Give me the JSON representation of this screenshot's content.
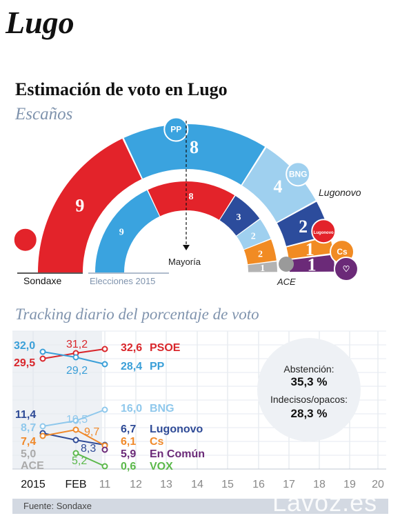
{
  "page": {
    "city_title": "Lugo",
    "title": "Estimación de voto en Lugo",
    "seats_subtitle": "Escaños",
    "tracking_subtitle": "Tracking diario del porcentaje de voto",
    "source": "Fuente: Sondaxe",
    "brand": "Lavoz.es"
  },
  "chart_data": [
    {
      "type": "pie",
      "title": "Escaños",
      "layout": "half-donut (hemicycle)",
      "outer_ring_label": "Sondaxe",
      "inner_ring_label": "Elecciones 2015",
      "majority_label": "Mayoría",
      "total_seats": 25,
      "outer_ring": [
        {
          "party": "PSOE",
          "seats": 9,
          "color": "#e3232a",
          "logo_text": ""
        },
        {
          "party": "PP",
          "seats": 8,
          "color": "#3aa3df",
          "logo_text": "PP"
        },
        {
          "party": "BNG",
          "seats": 4,
          "color": "#9fd0ef",
          "logo_text": "BNG"
        },
        {
          "party": "Lugonovo",
          "seats": 2,
          "color": "#2c4c9c",
          "logo_text": "Lugonovo"
        },
        {
          "party": "Cs",
          "seats": 1,
          "color": "#f18b23",
          "logo_text": "Cs"
        },
        {
          "party": "En Común",
          "seats": 1,
          "color": "#6b2a78",
          "logo_text": ""
        }
      ],
      "inner_ring": [
        {
          "party": "PP",
          "seats": 9,
          "color": "#3aa3df"
        },
        {
          "party": "PSOE",
          "seats": 8,
          "color": "#e3232a"
        },
        {
          "party": "Lugonovo",
          "seats": 3,
          "color": "#2c4c9c"
        },
        {
          "party": "BNG",
          "seats": 2,
          "color": "#9fd0ef"
        },
        {
          "party": "Cs",
          "seats": 2,
          "color": "#f18b23"
        },
        {
          "party": "ACE",
          "seats": 1,
          "color": "#b3b3b3"
        }
      ],
      "text_labels": {
        "lugonovo": "Lugonovo",
        "ace": "ACE"
      }
    },
    {
      "type": "line",
      "title": "Tracking diario del porcentaje de voto",
      "x_categories": [
        "2015",
        "FEB",
        "11",
        "12",
        "13",
        "14",
        "15",
        "16",
        "17",
        "18",
        "19",
        "20"
      ],
      "ylim": [
        0,
        36
      ],
      "series": [
        {
          "name": "PSOE",
          "values": [
            29.5,
            31.2,
            32.6
          ],
          "color": "#d9262b",
          "start_label": "29,5",
          "mid_label": "31,2",
          "end_label": "32,6"
        },
        {
          "name": "PP",
          "values": [
            32.0,
            29.2,
            28.4
          ],
          "color": "#3a9fd8",
          "start_label": "32,0",
          "mid_label": "29,2",
          "end_label": "28,4"
        },
        {
          "name": "BNG",
          "values": [
            8.7,
            10.5,
            16.0
          ],
          "color": "#8fc8ec",
          "start_label": "8,7",
          "mid_label": "10,5",
          "end_label": "16,0"
        },
        {
          "name": "Lugonovo",
          "values": [
            11.4,
            8.3,
            6.7
          ],
          "color": "#2e4a96",
          "start_label": "11,4",
          "mid_label": "8,3",
          "end_label": "6,7"
        },
        {
          "name": "Cs",
          "values": [
            7.4,
            9.7,
            6.1
          ],
          "color": "#f0892a",
          "start_label": "7,4",
          "mid_label": "9,7",
          "end_label": "6,1"
        },
        {
          "name": "En Común",
          "values": [
            null,
            null,
            5.9
          ],
          "color": "#6b2a78",
          "start_label": "",
          "mid_label": "",
          "end_label": "5,9"
        },
        {
          "name": "VOX",
          "values": [
            null,
            5.2,
            0.6
          ],
          "color": "#5bb84a",
          "start_label": "",
          "mid_label": "5,2",
          "end_label": "0,6"
        },
        {
          "name": "ACE",
          "values": [
            5.0,
            null,
            null
          ],
          "color": "#aaaaaa",
          "start_label": "5,0",
          "mid_label": "",
          "end_label": ""
        }
      ],
      "ace_label": "ACE",
      "summary": {
        "abstention_label": "Abstención:",
        "abstention_value": "35,3 %",
        "undecided_label": "Indecisos/opacos:",
        "undecided_value": "28,3 %"
      }
    }
  ]
}
